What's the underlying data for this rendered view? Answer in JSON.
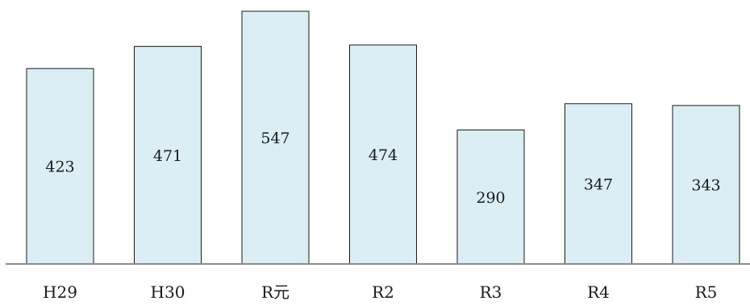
{
  "chart_data": {
    "type": "bar",
    "categories": [
      "H29",
      "H30",
      "R元",
      "R2",
      "R3",
      "R4",
      "R5"
    ],
    "values": [
      423,
      471,
      547,
      474,
      290,
      347,
      343
    ],
    "ylim": [
      0,
      547
    ],
    "grid": false,
    "legend": "none",
    "colors": {
      "bar_fill": "#daeef3",
      "bar_stroke": "#1a1a1a",
      "baseline": "#8c8c8c"
    }
  }
}
